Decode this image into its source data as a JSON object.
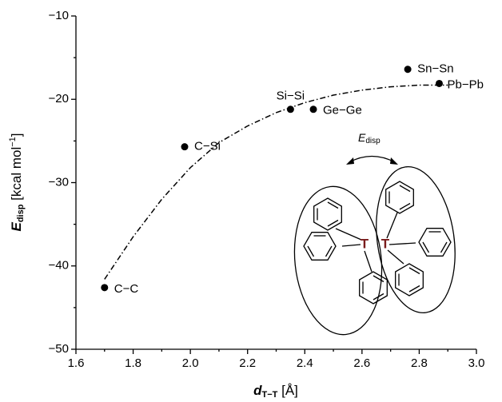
{
  "chart_data": {
    "type": "scatter",
    "x": [
      1.7,
      1.98,
      2.35,
      2.43,
      2.76,
      2.87
    ],
    "values": [
      -42.6,
      -25.7,
      -21.2,
      -21.2,
      -16.4,
      -18.1
    ],
    "labels": [
      "C−C",
      "C−Si",
      "Si−Si",
      "Ge−Ge",
      "Sn−Sn",
      "Pb−Pb"
    ],
    "color": "#000000",
    "curve": {
      "x": [
        1.7,
        1.8,
        1.9,
        2.0,
        2.1,
        2.2,
        2.3,
        2.4,
        2.5,
        2.6,
        2.7,
        2.8,
        2.9
      ],
      "values": [
        -41.6,
        -36.5,
        -32.0,
        -28.2,
        -25.2,
        -23.2,
        -21.6,
        -20.4,
        -19.5,
        -18.9,
        -18.5,
        -18.3,
        -18.3
      ]
    },
    "xlim": [
      1.6,
      3.0
    ],
    "xticks": [
      1.6,
      1.8,
      {
        "value": 2,
        "label": "2.0"
      },
      2.2,
      2.4,
      2.6,
      2.8,
      {
        "value": 3,
        "label": "3.0"
      }
    ],
    "xminorticks": [
      1.7,
      1.9,
      2.1,
      2.3,
      2.5,
      2.7,
      2.9
    ],
    "ylim": [
      -50,
      -10
    ],
    "yticks": [
      {
        "value": -50,
        "label": "−50"
      },
      {
        "value": -40,
        "label": "−40"
      },
      {
        "value": -30,
        "label": "−30"
      },
      {
        "value": -20,
        "label": "−20"
      },
      {
        "value": -10,
        "label": "−10"
      }
    ],
    "yminorticks": [
      -45,
      -35,
      -25,
      -15
    ],
    "xlabel": {
      "main": "d",
      "sub": "T−T",
      "rest": " [Å]"
    },
    "ylabel": {
      "main": "E",
      "sub": "disp",
      "rest": " [kcal mol",
      "sup": "−1",
      "end": "]"
    },
    "inset": {
      "label_main": "E",
      "label_sub": "disp",
      "atom_labels": [
        "T",
        "T"
      ]
    }
  }
}
